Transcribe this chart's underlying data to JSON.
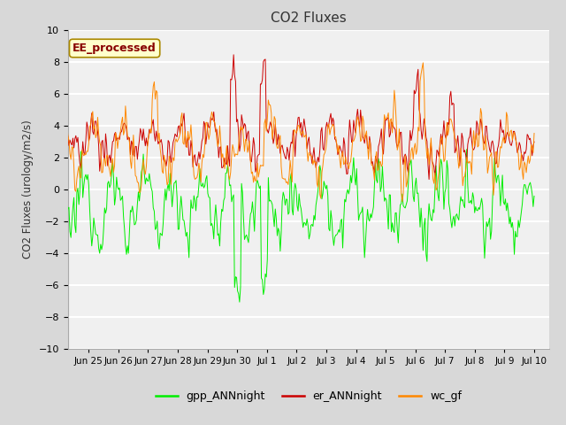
{
  "title": "CO2 Fluxes",
  "ylabel": "CO2 Fluxes (urology/m2/s)",
  "ylim": [
    -10,
    10
  ],
  "yticks": [
    -10,
    -8,
    -6,
    -4,
    -2,
    0,
    2,
    4,
    6,
    8,
    10
  ],
  "fig_bg_color": "#d8d8d8",
  "plot_bg_color": "#f0f0f0",
  "grid_color": "#ffffff",
  "annotation_text": "EE_processed",
  "annotation_bg": "#ffffcc",
  "annotation_border": "#aa8800",
  "annotation_text_color": "#880000",
  "colors": {
    "gpp_ANNnight": "#00ee00",
    "er_ANNnight": "#cc0000",
    "wc_gf": "#ff8800"
  },
  "legend_labels": [
    "gpp_ANNnight",
    "er_ANNnight",
    "wc_gf"
  ],
  "xtick_labels": [
    "Jun 25",
    "Jun 26",
    "Jun 27",
    "Jun 28",
    "Jun 29",
    "Jun 30",
    "Jul 1",
    "Jul 2",
    "Jul 3",
    "Jul 4",
    "Jul 5",
    "Jul 6",
    "Jul 7",
    "Jul 8",
    "Jul 9",
    "Jul 10"
  ],
  "xtick_positions": [
    1,
    2,
    3,
    4,
    5,
    6,
    7,
    8,
    9,
    10,
    11,
    12,
    13,
    14,
    15,
    16
  ],
  "n_points": 480,
  "seed": 12345
}
